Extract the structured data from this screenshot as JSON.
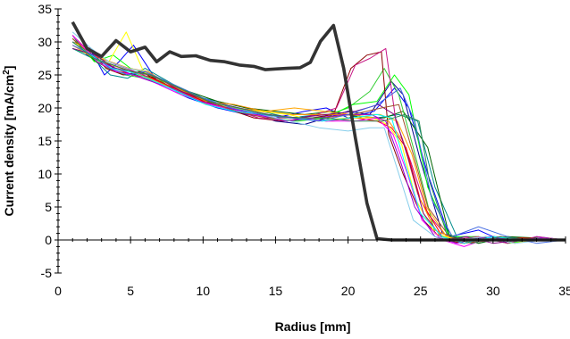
{
  "chart_data": {
    "type": "line",
    "title": "",
    "xlabel": "Radius [mm]",
    "ylabel_main": "Current density [mA/cm",
    "ylabel_sup": "2",
    "ylabel_close": "]",
    "xlim": [
      0,
      35
    ],
    "ylim": [
      -5,
      35
    ],
    "xticks": [
      0,
      5,
      10,
      15,
      20,
      25,
      30,
      35
    ],
    "yticks": [
      -5,
      0,
      5,
      10,
      15,
      20,
      25,
      30,
      35
    ],
    "x_minor_step": 1,
    "y_minor_step": 1,
    "grid": false,
    "legend": "none",
    "colors": {
      "bold": "#333333",
      "axis": "#000000",
      "background": "#ffffff"
    },
    "series": [
      {
        "color": "#333333",
        "bold": true,
        "x": [
          1,
          2,
          3,
          4,
          5,
          6,
          6.8,
          7.7,
          8.5,
          9.5,
          10.5,
          11.5,
          12.5,
          13.5,
          14.3,
          15,
          15.8,
          16.7,
          17.4,
          18.1,
          19,
          19.7,
          20.5,
          21.3,
          22,
          23,
          25,
          30,
          35
        ],
        "y": [
          33,
          29,
          27.8,
          30.2,
          28.5,
          29.2,
          27,
          28.5,
          27.8,
          27.9,
          27.2,
          27,
          26.5,
          26.3,
          25.8,
          25.9,
          26,
          26.1,
          26.9,
          30.1,
          32.5,
          26,
          15.5,
          5.6,
          0.2,
          0,
          0,
          0,
          0
        ]
      },
      {
        "color": "#00008b",
        "x": [
          1,
          2,
          3,
          4,
          5,
          7,
          9,
          11,
          13,
          15,
          17,
          18.5,
          20,
          21.5,
          23,
          23.8,
          25,
          26.5,
          28,
          30,
          32,
          35
        ],
        "y": [
          31,
          28,
          27,
          26,
          25.5,
          24,
          22,
          20.5,
          19.5,
          18,
          17.5,
          18.5,
          19.5,
          19,
          24,
          22,
          12,
          1,
          0,
          0.5,
          0.3,
          0
        ]
      },
      {
        "color": "#0000ff",
        "x": [
          1,
          2.2,
          3.2,
          4.2,
          5.2,
          7,
          9,
          11,
          13,
          15,
          17,
          18.5,
          20,
          21.8,
          23.2,
          24.2,
          25.5,
          27,
          29,
          31,
          33,
          35
        ],
        "y": [
          30,
          29,
          25,
          27,
          29.5,
          23.5,
          21.5,
          20,
          19,
          18.5,
          19.5,
          20,
          18.5,
          19.5,
          23,
          20,
          10,
          0.5,
          1.5,
          -0.5,
          0.5,
          0
        ]
      },
      {
        "color": "#008b8b",
        "x": [
          1,
          2.4,
          3.6,
          4.8,
          6,
          8,
          10,
          12,
          14,
          16,
          18,
          20,
          22,
          23.5,
          24.8,
          26,
          27.5,
          29,
          31,
          33,
          35
        ],
        "y": [
          29,
          27.5,
          25,
          24.5,
          26,
          23.5,
          21.5,
          20.5,
          19.5,
          18.5,
          19,
          19,
          18.5,
          19,
          18,
          8,
          0.5,
          -0.5,
          0.5,
          0,
          0
        ]
      },
      {
        "color": "#006400",
        "x": [
          1,
          2.6,
          4,
          5.5,
          7,
          9,
          11,
          13,
          15,
          17,
          19,
          21,
          22.5,
          23.8,
          25.5,
          27,
          29,
          31,
          33,
          35
        ],
        "y": [
          30.5,
          27,
          25.5,
          25,
          24.5,
          22.5,
          21,
          20,
          19.5,
          19,
          19.5,
          18.5,
          18.5,
          19.5,
          14,
          0.5,
          -0.5,
          0.5,
          0.3,
          0
        ]
      },
      {
        "color": "#32cd32",
        "x": [
          1,
          2.3,
          3.4,
          4.6,
          6,
          8,
          10,
          12,
          14,
          16,
          18,
          20,
          21.5,
          22.5,
          23.5,
          24.5,
          26,
          28,
          30,
          32,
          35
        ],
        "y": [
          29,
          28,
          26,
          25,
          24.5,
          23,
          21.5,
          20,
          19,
          18.5,
          18.5,
          20,
          22.5,
          26,
          22,
          14,
          1,
          -0.5,
          0.5,
          0,
          0
        ]
      },
      {
        "color": "#00ff00",
        "x": [
          1,
          2.5,
          3.8,
          5,
          6.5,
          8.5,
          10.5,
          12.5,
          14.5,
          16.5,
          18.5,
          20.3,
          22,
          23.2,
          24.2,
          25.5,
          27,
          29,
          31,
          33,
          35
        ],
        "y": [
          31,
          27,
          28,
          26,
          25,
          22,
          20.5,
          19.5,
          18.5,
          18,
          18.5,
          20.5,
          21,
          25,
          22,
          8,
          0.5,
          0.5,
          -0.5,
          0,
          0
        ]
      },
      {
        "color": "#8b0000",
        "x": [
          1,
          2.2,
          3.3,
          4.5,
          5.7,
          7.5,
          9.5,
          11.5,
          13.5,
          15.5,
          17.5,
          19,
          20.2,
          21.3,
          22.3,
          22.8,
          23.8,
          25.2,
          26.5,
          28,
          30,
          32,
          35
        ],
        "y": [
          30,
          29,
          26,
          25,
          25.5,
          23.5,
          21.5,
          20,
          18.5,
          18,
          18.5,
          19,
          26,
          28,
          28.5,
          16,
          10,
          3,
          0,
          -0.5,
          0.5,
          0,
          0
        ]
      },
      {
        "color": "#c71585",
        "x": [
          1,
          2.4,
          3.5,
          4.7,
          5.9,
          7.8,
          9.8,
          11.8,
          13.8,
          15.8,
          17.8,
          19.2,
          20.5,
          21.5,
          22.6,
          23.3,
          24.3,
          25.5,
          27,
          29,
          31,
          33,
          35
        ],
        "y": [
          31,
          28,
          27,
          26,
          25,
          23,
          21,
          20,
          18.5,
          18,
          19,
          20,
          26.5,
          27.5,
          29,
          18,
          12,
          4,
          0,
          0.5,
          -0.5,
          0.5,
          0
        ]
      },
      {
        "color": "#ff0000",
        "x": [
          1,
          2.6,
          3.9,
          5.1,
          6.5,
          8.5,
          10.5,
          12.5,
          14.5,
          16.5,
          18.5,
          20.5,
          22,
          23,
          24,
          25,
          26.5,
          28,
          30,
          32,
          35
        ],
        "y": [
          30,
          27.5,
          26,
          25,
          24.5,
          22.5,
          20.5,
          19.5,
          19,
          18.5,
          18,
          18.5,
          18,
          17,
          14,
          6,
          0.5,
          -0.5,
          0,
          0.3,
          0
        ]
      },
      {
        "color": "#ff8c00",
        "x": [
          1,
          2.3,
          3.6,
          4.9,
          6.2,
          8.2,
          10.2,
          12.2,
          14.2,
          16.2,
          18.2,
          20.2,
          21.8,
          22.8,
          23.8,
          24.8,
          26,
          27.5,
          29.5,
          31.5,
          33.5,
          35
        ],
        "y": [
          30.5,
          28,
          27,
          26,
          25.5,
          23,
          21,
          20.5,
          19.5,
          19,
          19,
          19,
          18.5,
          18,
          15,
          7,
          1.5,
          0,
          0.5,
          -0.5,
          0.3,
          0
        ]
      },
      {
        "color": "#ffa500",
        "x": [
          1,
          2.5,
          3.7,
          5,
          6.3,
          8.3,
          10.3,
          12.3,
          14.3,
          16.3,
          18.3,
          20.2,
          22.2,
          23.4,
          24.4,
          25.4,
          26.8,
          28.5,
          30.5,
          32.5,
          35
        ],
        "y": [
          29.5,
          27.5,
          26.5,
          25.5,
          24.5,
          22.5,
          20.5,
          20,
          19.5,
          20,
          19.5,
          19,
          19,
          18,
          13,
          5,
          0.5,
          -0.5,
          0.5,
          0,
          0
        ]
      },
      {
        "color": "#ffff00",
        "x": [
          1,
          2.4,
          3.5,
          4.7,
          5.9,
          7.9,
          9.9,
          11.9,
          13.9,
          15.9,
          17.9,
          19.9,
          21.7,
          22.7,
          23.7,
          24.7,
          26,
          27.5,
          29.5,
          31.5,
          33.5,
          35
        ],
        "y": [
          30,
          28.5,
          27,
          31.5,
          25.5,
          23.5,
          21.5,
          20,
          19.5,
          19,
          18,
          18.5,
          18.5,
          17.5,
          14.5,
          6,
          1,
          0,
          0.5,
          -0.5,
          0.3,
          0
        ]
      },
      {
        "color": "#ff00ff",
        "x": [
          1,
          2.7,
          4,
          5.2,
          6.5,
          8.5,
          10.5,
          12.5,
          14.5,
          16.5,
          18.5,
          20.5,
          22,
          23.1,
          24.1,
          25.1,
          26.5,
          28,
          30,
          32,
          35
        ],
        "y": [
          31,
          27,
          25.5,
          25,
          24,
          22,
          20.5,
          19.5,
          18.5,
          18.5,
          18,
          18,
          18.5,
          16,
          10,
          3,
          0,
          -1,
          0.5,
          0,
          0
        ]
      },
      {
        "color": "#9400d3",
        "x": [
          1,
          2.2,
          3.4,
          4.6,
          5.8,
          7.8,
          9.8,
          11.8,
          13.8,
          15.8,
          17.8,
          19.8,
          21.6,
          22.6,
          23.6,
          24.6,
          26,
          27.5,
          29.5,
          31.5,
          33.5,
          35
        ],
        "y": [
          30,
          28,
          26.5,
          25.5,
          24.5,
          23,
          21,
          20,
          19,
          18,
          18.5,
          19,
          19,
          18,
          12,
          5,
          0.5,
          -0.5,
          0.5,
          0,
          0.3,
          0
        ]
      },
      {
        "color": "#800080",
        "x": [
          1,
          2.6,
          3.9,
          5.2,
          6.5,
          8.5,
          10.5,
          12.5,
          14.5,
          16.5,
          18.5,
          20.5,
          22.1,
          23.2,
          24.2,
          25.2,
          26.6,
          28.2,
          30,
          32,
          35
        ],
        "y": [
          29,
          28,
          26,
          25.5,
          25,
          22.5,
          21,
          20,
          19,
          18.5,
          19,
          19.5,
          20.5,
          19,
          12,
          4,
          0,
          0.5,
          -0.5,
          0,
          0
        ]
      },
      {
        "color": "#a0522d",
        "x": [
          1,
          2.5,
          3.8,
          5,
          6.3,
          8.3,
          10.3,
          12.3,
          14.3,
          16.3,
          18.3,
          20.3,
          22.3,
          23.5,
          24.5,
          25.5,
          27,
          28.5,
          30.5,
          32.5,
          35
        ],
        "y": [
          30.5,
          27.5,
          26.5,
          25.5,
          25,
          23,
          21,
          19.5,
          18.5,
          18.5,
          18.5,
          19,
          20,
          20.5,
          13,
          5,
          0.5,
          -0.5,
          0.5,
          0,
          0
        ]
      },
      {
        "color": "#87ceeb",
        "x": [
          1,
          2.3,
          3.5,
          4.8,
          6,
          8,
          10,
          12,
          14,
          16,
          18,
          20,
          21.5,
          22.5,
          23.5,
          24.5,
          26,
          27.5,
          29.5,
          31.5,
          33.5,
          35
        ],
        "y": [
          31.5,
          29,
          27,
          26,
          25.5,
          23.5,
          21.5,
          20,
          19,
          18,
          17,
          16.5,
          17,
          17,
          10,
          3,
          0.5,
          0,
          0.5,
          -0.5,
          0,
          0
        ]
      },
      {
        "color": "#00ffff",
        "x": [
          1,
          2.6,
          3.7,
          4.9,
          6.2,
          8.2,
          10.2,
          12.2,
          14.2,
          16.2,
          18.2,
          20.2,
          22,
          23,
          24,
          25,
          26.5,
          28,
          30,
          32,
          35
        ],
        "y": [
          30,
          27.5,
          26,
          25.5,
          24.5,
          22.5,
          20.5,
          19.5,
          19,
          18.5,
          18,
          18.5,
          19,
          18.5,
          11,
          4,
          0.5,
          -0.5,
          0.5,
          0,
          0
        ]
      },
      {
        "color": "#4169e1",
        "x": [
          1,
          2.4,
          3.6,
          4.8,
          6,
          8,
          10,
          12,
          14,
          16,
          18,
          20,
          22,
          23.6,
          24.6,
          25.8,
          27.2,
          29,
          31,
          33,
          35
        ],
        "y": [
          29.5,
          28,
          26,
          25,
          25.5,
          23.5,
          21.5,
          20,
          19,
          18.5,
          18,
          19,
          20.5,
          23,
          18,
          6,
          0.5,
          2,
          0.5,
          -0.5,
          0
        ]
      },
      {
        "color": "#2e8b57",
        "x": [
          1,
          2.5,
          3.8,
          5.1,
          6.4,
          8.4,
          10.4,
          12.4,
          14.4,
          16.4,
          18.4,
          20.4,
          22.4,
          23.9,
          24.9,
          25.6,
          26.8,
          28.5,
          30.5,
          32.5,
          35
        ],
        "y": [
          30,
          27.5,
          26.5,
          25.5,
          25,
          23,
          21,
          20,
          19,
          18.5,
          18.5,
          18,
          18,
          19,
          18,
          9,
          1,
          -0.5,
          0.5,
          0,
          0
        ]
      }
    ]
  }
}
